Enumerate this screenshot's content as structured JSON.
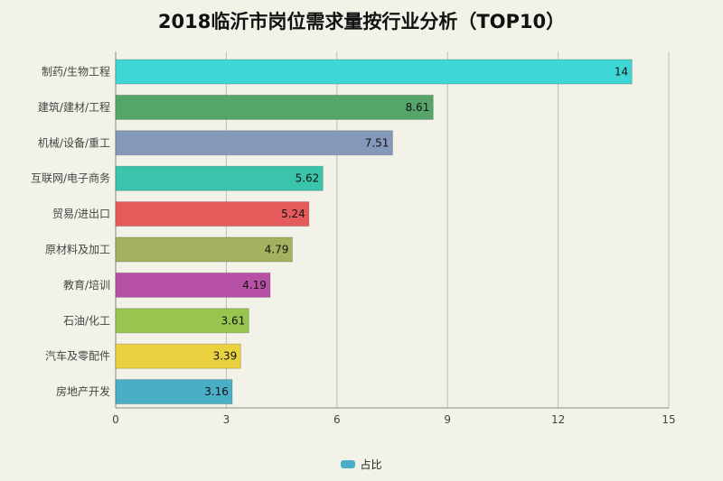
{
  "chart_data": {
    "type": "bar",
    "orientation": "horizontal",
    "title": "2018临沂市岗位需求量按行业分析（TOP10）",
    "categories": [
      "制药/生物工程",
      "建筑/建材/工程",
      "机械/设备/重工",
      "互联网/电子商务",
      "贸易/进出口",
      "原材料及加工",
      "教育/培训",
      "石油/化工",
      "汽车及零配件",
      "房地产开发"
    ],
    "series": [
      {
        "name": "占比",
        "values": [
          14,
          8.61,
          7.51,
          5.62,
          5.24,
          4.79,
          4.19,
          3.61,
          3.39,
          3.16
        ],
        "value_labels": [
          "14",
          "8.61",
          "7.51",
          "5.62",
          "5.24",
          "4.79",
          "4.19",
          "3.61",
          "3.39",
          "3.16"
        ]
      }
    ],
    "bar_colors": [
      "#3fd7d5",
      "#55a56a",
      "#8498b9",
      "#3bc4ac",
      "#e55a5a",
      "#a3b25f",
      "#b651a6",
      "#97c54f",
      "#ead13f",
      "#4aaec6"
    ],
    "legend_color": "#4aaec6",
    "xlim": [
      0,
      15
    ],
    "xticks": [
      "0",
      "3",
      "6",
      "9",
      "12",
      "15"
    ],
    "grid": true,
    "legend_position": "bottom"
  }
}
